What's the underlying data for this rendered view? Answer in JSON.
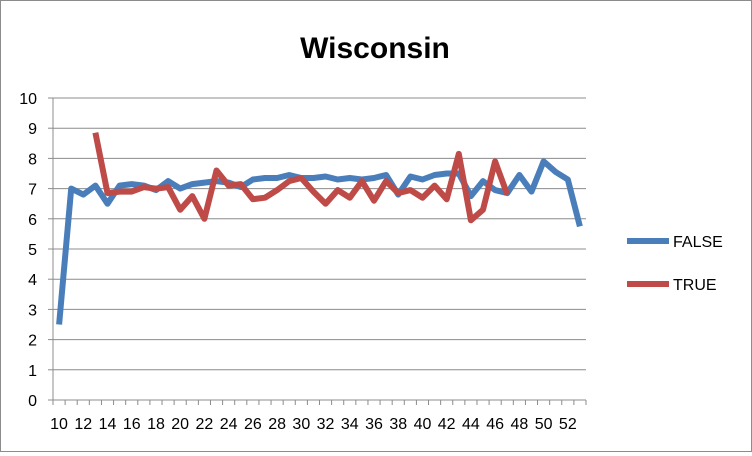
{
  "chart_data": {
    "type": "line",
    "title": "Wisconsin",
    "xlabel": "",
    "ylabel": "",
    "ylim": [
      0,
      10
    ],
    "yticks": [
      "0",
      "1",
      "2",
      "3",
      "4",
      "5",
      "6",
      "7",
      "8",
      "9",
      "10"
    ],
    "xticks": [
      "10",
      "12",
      "14",
      "16",
      "18",
      "20",
      "22",
      "24",
      "26",
      "28",
      "30",
      "32",
      "34",
      "36",
      "38",
      "40",
      "42",
      "44",
      "46",
      "48",
      "50",
      "52"
    ],
    "grid": true,
    "legend": "right",
    "series": [
      {
        "name": "FALSE",
        "color": "#4a7ebb",
        "x": [
          10,
          11,
          12,
          13,
          14,
          15,
          16,
          17,
          18,
          19,
          20,
          21,
          22,
          23,
          24,
          25,
          26,
          27,
          28,
          29,
          30,
          31,
          32,
          33,
          34,
          35,
          36,
          37,
          38,
          39,
          40,
          41,
          42,
          43,
          44,
          45,
          46,
          47,
          48,
          49,
          50,
          51,
          52,
          53
        ],
        "y": [
          2.5,
          7.0,
          6.8,
          7.1,
          6.5,
          7.1,
          7.15,
          7.1,
          6.95,
          7.25,
          7.0,
          7.15,
          7.2,
          7.25,
          7.2,
          7.05,
          7.3,
          7.35,
          7.35,
          7.45,
          7.35,
          7.35,
          7.4,
          7.3,
          7.35,
          7.3,
          7.35,
          7.45,
          6.8,
          7.4,
          7.3,
          7.45,
          7.5,
          7.5,
          6.75,
          7.25,
          6.95,
          6.85,
          7.45,
          6.9,
          7.9,
          7.55,
          7.3,
          5.75
        ]
      },
      {
        "name": "TRUE",
        "color": "#be4b48",
        "x": [
          13,
          14,
          15,
          16,
          17,
          18,
          19,
          20,
          21,
          22,
          23,
          24,
          25,
          26,
          27,
          28,
          29,
          30,
          31,
          32,
          33,
          34,
          35,
          36,
          37,
          38,
          39,
          40,
          41,
          42,
          43,
          44,
          45,
          46,
          47
        ],
        "y": [
          8.85,
          6.85,
          6.9,
          6.9,
          7.05,
          7.0,
          7.05,
          6.3,
          6.75,
          6.0,
          7.6,
          7.1,
          7.15,
          6.65,
          6.7,
          6.95,
          7.25,
          7.35,
          6.9,
          6.5,
          6.95,
          6.7,
          7.25,
          6.6,
          7.25,
          6.85,
          6.95,
          6.7,
          7.1,
          6.65,
          8.15,
          5.95,
          6.3,
          7.9,
          6.8
        ]
      }
    ]
  }
}
